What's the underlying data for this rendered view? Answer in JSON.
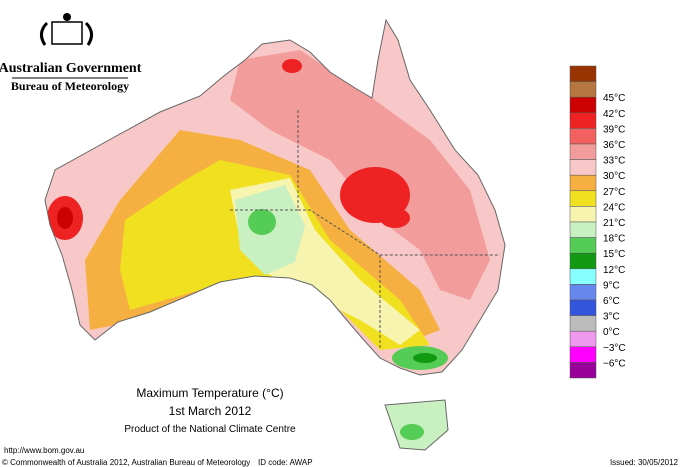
{
  "header": {
    "agency": "Australian Government",
    "bureau": "Bureau of Meteorology"
  },
  "map": {
    "title": "Maximum Temperature (°C)",
    "date": "1st March 2012",
    "product": "Product of the National Climate Centre"
  },
  "legend": {
    "colors": [
      "#993300",
      "#b5773f",
      "#cc0000",
      "#ee2222",
      "#f26060",
      "#f29c9c",
      "#f8c8c8",
      "#f5b041",
      "#f0e020",
      "#f7f4b0",
      "#c8f0c0",
      "#55cc55",
      "#119911",
      "#88ffff",
      "#6688ee",
      "#3355dd",
      "#bbbbbb",
      "#ee99ee",
      "#ff00ff",
      "#990099"
    ],
    "labels": [
      "45°C",
      "42°C",
      "39°C",
      "36°C",
      "33°C",
      "30°C",
      "27°C",
      "24°C",
      "21°C",
      "18°C",
      "15°C",
      "12°C",
      "9°C",
      "6°C",
      "3°C",
      "0°C",
      "−3°C",
      "−6°C"
    ]
  },
  "footer": {
    "url": "http://www.bom.gov.au",
    "copyright": "© Commonwealth of Australia 2012, Australian Bureau of Meteorology",
    "id_code": "ID code: AWAP",
    "issued": "Issued: 30/05/2012"
  }
}
